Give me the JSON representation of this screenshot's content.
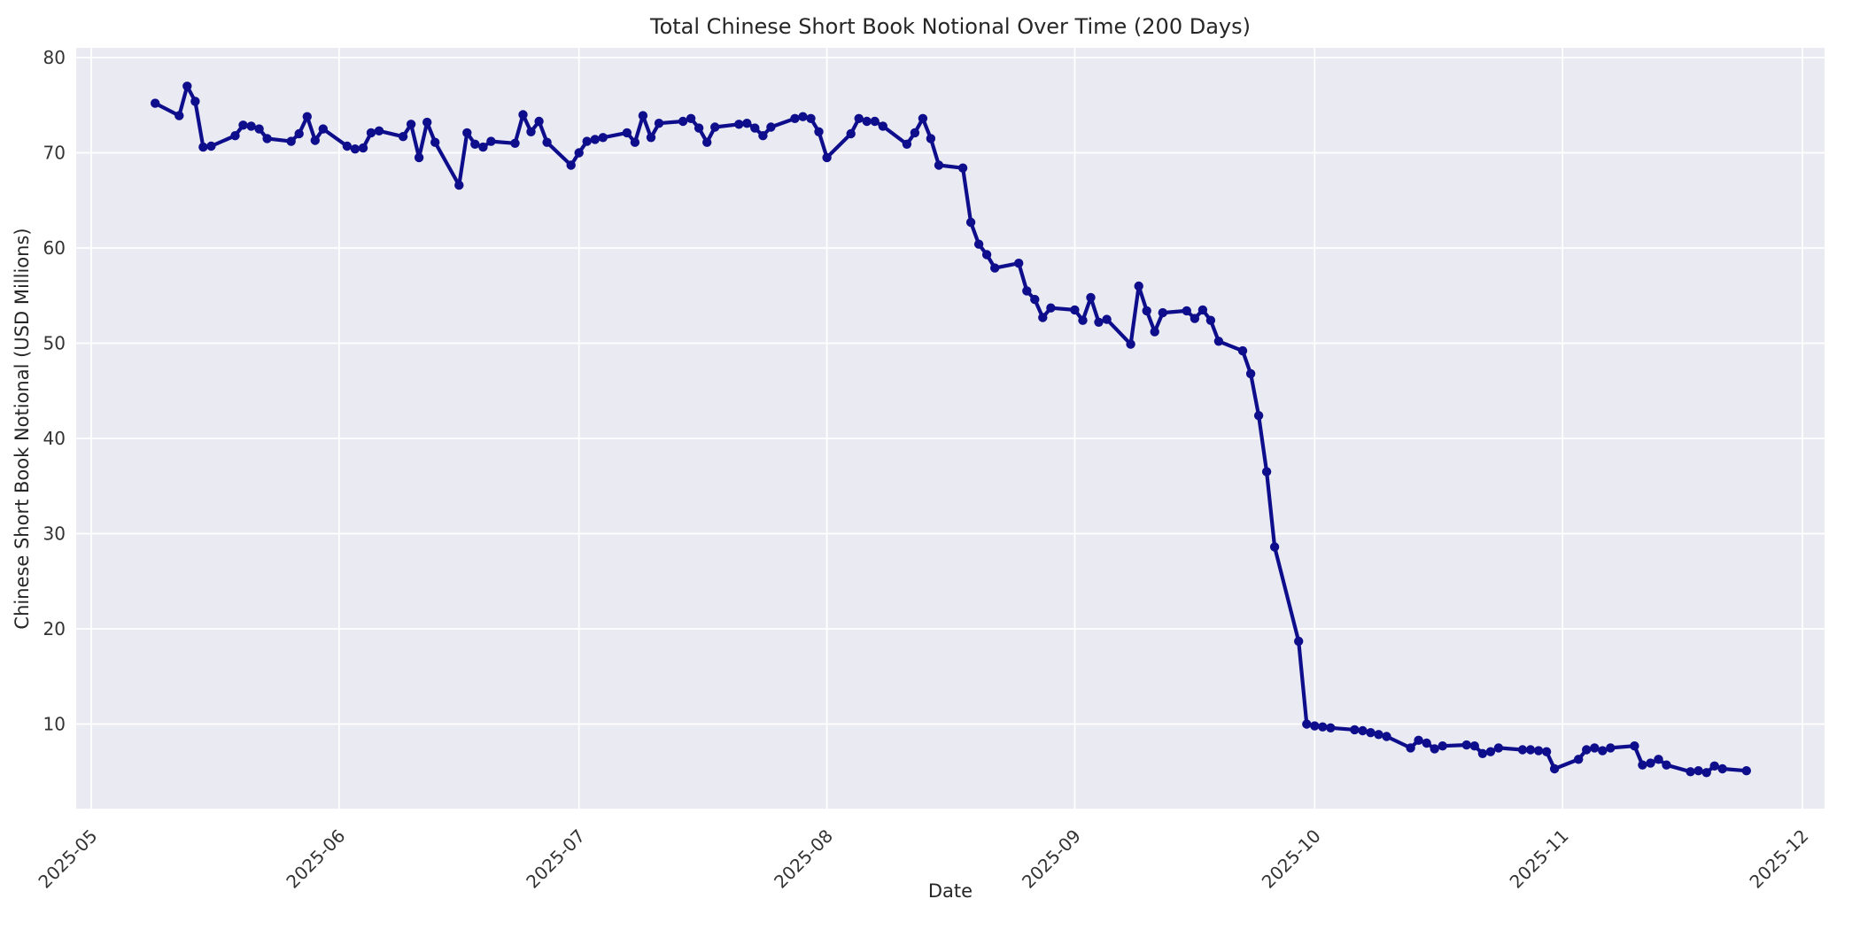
{
  "figure": {
    "background_color": "#ffffff",
    "plot_background_color": "#eaeaf2",
    "grid_color": "#ffffff",
    "text_color": "#262626",
    "tick_color": "#333333"
  },
  "chart_data": {
    "type": "line",
    "title": "Total Chinese Short Book Notional Over Time (200 Days)",
    "xlabel": "Date",
    "ylabel": "Chinese Short Book Notional (USD Millions)",
    "grid": true,
    "legend": false,
    "line_color": "#0e0e8c",
    "marker": "circle",
    "ylim": [
      1.1,
      81.0
    ],
    "xlim_dates": [
      "2025-04-29",
      "2025-12-04"
    ],
    "y_ticks": [
      10,
      20,
      30,
      40,
      50,
      60,
      70,
      80
    ],
    "x_ticks": [
      {
        "label": "2025-05",
        "date": "2025-05-01"
      },
      {
        "label": "2025-06",
        "date": "2025-06-01"
      },
      {
        "label": "2025-07",
        "date": "2025-07-01"
      },
      {
        "label": "2025-08",
        "date": "2025-08-01"
      },
      {
        "label": "2025-09",
        "date": "2025-09-01"
      },
      {
        "label": "2025-10",
        "date": "2025-10-01"
      },
      {
        "label": "2025-11",
        "date": "2025-11-01"
      },
      {
        "label": "2025-12",
        "date": "2025-12-01"
      }
    ],
    "series": [
      {
        "name": "Chinese Short Book Notional",
        "dates": [
          "2025-05-09",
          "2025-05-12",
          "2025-05-13",
          "2025-05-14",
          "2025-05-15",
          "2025-05-16",
          "2025-05-19",
          "2025-05-20",
          "2025-05-21",
          "2025-05-22",
          "2025-05-23",
          "2025-05-26",
          "2025-05-27",
          "2025-05-28",
          "2025-05-29",
          "2025-05-30",
          "2025-06-02",
          "2025-06-03",
          "2025-06-04",
          "2025-06-05",
          "2025-06-06",
          "2025-06-09",
          "2025-06-10",
          "2025-06-11",
          "2025-06-12",
          "2025-06-13",
          "2025-06-16",
          "2025-06-17",
          "2025-06-18",
          "2025-06-19",
          "2025-06-20",
          "2025-06-23",
          "2025-06-24",
          "2025-06-25",
          "2025-06-26",
          "2025-06-27",
          "2025-06-30",
          "2025-07-01",
          "2025-07-02",
          "2025-07-03",
          "2025-07-04",
          "2025-07-07",
          "2025-07-08",
          "2025-07-09",
          "2025-07-10",
          "2025-07-11",
          "2025-07-14",
          "2025-07-15",
          "2025-07-16",
          "2025-07-17",
          "2025-07-18",
          "2025-07-21",
          "2025-07-22",
          "2025-07-23",
          "2025-07-24",
          "2025-07-25",
          "2025-07-28",
          "2025-07-29",
          "2025-07-30",
          "2025-07-31",
          "2025-08-01",
          "2025-08-04",
          "2025-08-05",
          "2025-08-06",
          "2025-08-07",
          "2025-08-08",
          "2025-08-11",
          "2025-08-12",
          "2025-08-13",
          "2025-08-14",
          "2025-08-15",
          "2025-08-18",
          "2025-08-19",
          "2025-08-20",
          "2025-08-21",
          "2025-08-22",
          "2025-08-25",
          "2025-08-26",
          "2025-08-27",
          "2025-08-28",
          "2025-08-29",
          "2025-09-01",
          "2025-09-02",
          "2025-09-03",
          "2025-09-04",
          "2025-09-05",
          "2025-09-08",
          "2025-09-09",
          "2025-09-10",
          "2025-09-11",
          "2025-09-12",
          "2025-09-15",
          "2025-09-16",
          "2025-09-17",
          "2025-09-18",
          "2025-09-19",
          "2025-09-22",
          "2025-09-23",
          "2025-09-24",
          "2025-09-25",
          "2025-09-26",
          "2025-09-29",
          "2025-09-30",
          "2025-10-01",
          "2025-10-02",
          "2025-10-03",
          "2025-10-06",
          "2025-10-07",
          "2025-10-08",
          "2025-10-09",
          "2025-10-10",
          "2025-10-13",
          "2025-10-14",
          "2025-10-15",
          "2025-10-16",
          "2025-10-17",
          "2025-10-20",
          "2025-10-21",
          "2025-10-22",
          "2025-10-23",
          "2025-10-24",
          "2025-10-27",
          "2025-10-28",
          "2025-10-29",
          "2025-10-30",
          "2025-10-31",
          "2025-11-03",
          "2025-11-04",
          "2025-11-05",
          "2025-11-06",
          "2025-11-07",
          "2025-11-10",
          "2025-11-11",
          "2025-11-12",
          "2025-11-13",
          "2025-11-14",
          "2025-11-17",
          "2025-11-18",
          "2025-11-19",
          "2025-11-20",
          "2025-11-21",
          "2025-11-24"
        ],
        "values": [
          75.2,
          73.9,
          77.0,
          75.4,
          70.6,
          70.7,
          71.8,
          72.9,
          72.8,
          72.5,
          71.5,
          71.2,
          72.0,
          73.8,
          71.3,
          72.5,
          70.7,
          70.4,
          70.5,
          72.1,
          72.3,
          71.7,
          73.0,
          69.5,
          73.2,
          71.1,
          66.6,
          72.1,
          70.9,
          70.6,
          71.2,
          71.0,
          74.0,
          72.2,
          73.3,
          71.1,
          68.7,
          70.0,
          71.2,
          71.4,
          71.6,
          72.1,
          71.1,
          73.9,
          71.6,
          73.1,
          73.3,
          73.6,
          72.6,
          71.1,
          72.7,
          73.0,
          73.1,
          72.6,
          71.8,
          72.7,
          73.6,
          73.8,
          73.6,
          72.2,
          69.5,
          72.0,
          73.6,
          73.3,
          73.3,
          72.8,
          70.9,
          72.1,
          73.6,
          71.5,
          68.7,
          68.4,
          62.7,
          60.4,
          59.3,
          57.9,
          58.4,
          55.5,
          54.6,
          52.7,
          53.7,
          53.5,
          52.4,
          54.8,
          52.2,
          52.5,
          49.9,
          56.0,
          53.4,
          51.2,
          53.2,
          53.4,
          52.6,
          53.5,
          52.4,
          50.2,
          49.2,
          46.8,
          42.4,
          36.5,
          28.6,
          18.7,
          10.0,
          9.8,
          9.7,
          9.6,
          9.4,
          9.3,
          9.1,
          8.9,
          8.7,
          7.5,
          8.3,
          8.0,
          7.4,
          7.7,
          7.8,
          7.7,
          6.9,
          7.1,
          7.5,
          7.3,
          7.3,
          7.2,
          7.1,
          5.3,
          6.3,
          7.3,
          7.5,
          7.2,
          7.5,
          7.7,
          5.7,
          5.9,
          6.3,
          5.7,
          5.0,
          5.1,
          4.9,
          5.6,
          5.3,
          5.1
        ]
      }
    ]
  }
}
